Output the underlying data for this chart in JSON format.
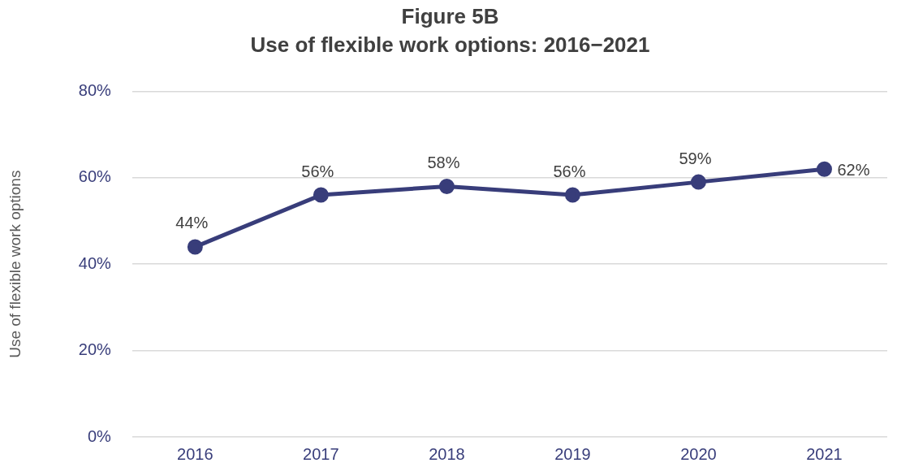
{
  "chart_data": {
    "type": "line",
    "title": "Figure 5B",
    "subtitle": "Use of flexible work options: 2016−2021",
    "ylabel": "Use of flexible work options",
    "categories": [
      "2016",
      "2017",
      "2018",
      "2019",
      "2020",
      "2021"
    ],
    "series": [
      {
        "color": "#383d7a",
        "values": [
          44,
          56,
          58,
          56,
          59,
          62
        ],
        "value_labels": [
          "44%",
          "56%",
          "58%",
          "56%",
          "59%",
          "62%"
        ]
      }
    ],
    "ylim": [
      0,
      80
    ],
    "yticks": [
      {
        "value": 0,
        "label": "0%"
      },
      {
        "value": 20,
        "label": "20%"
      },
      {
        "value": 40,
        "label": "40%"
      },
      {
        "value": 60,
        "label": "60%"
      },
      {
        "value": 80,
        "label": "80%"
      }
    ],
    "grid": "y",
    "legend": false,
    "marker": "circle",
    "line_style": "solid"
  }
}
